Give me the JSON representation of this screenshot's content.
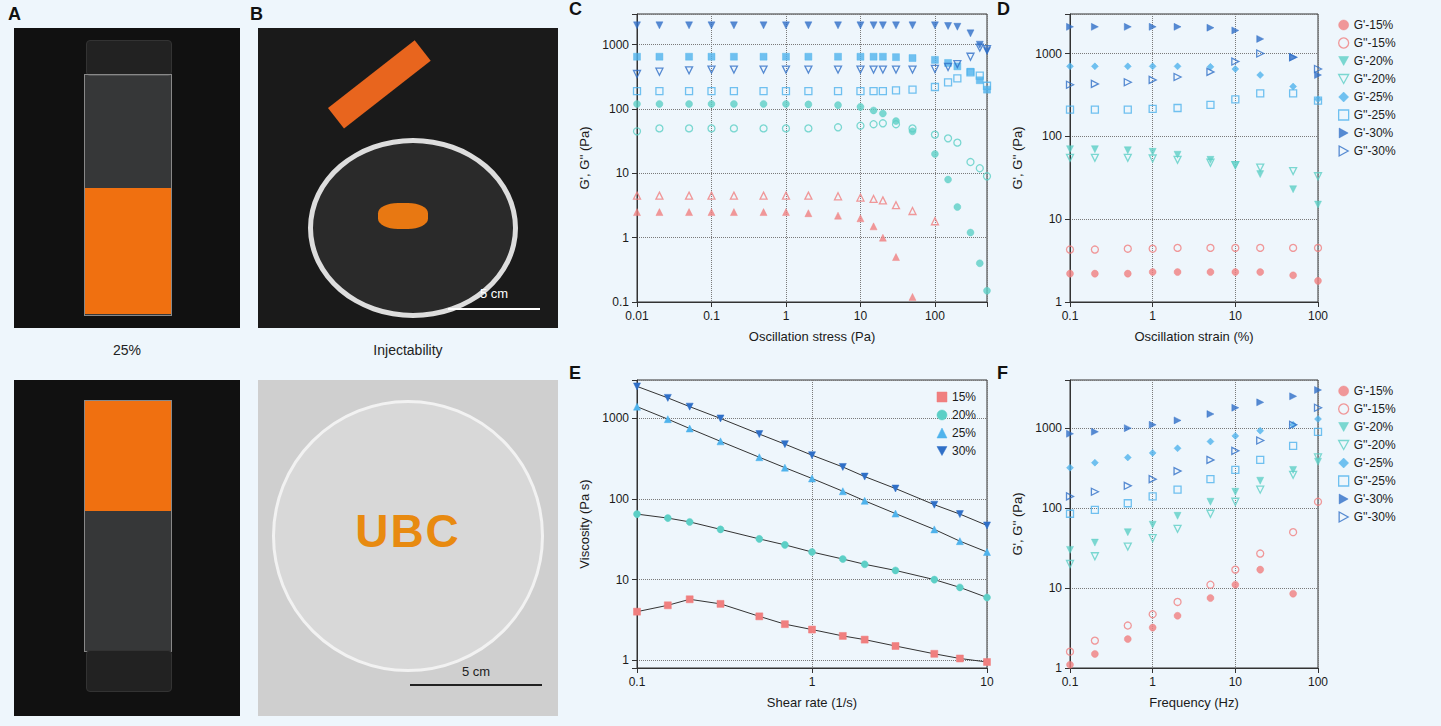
{
  "panels": [
    {
      "letter": "A",
      "caption": "25%"
    },
    {
      "letter": "B",
      "caption": "Injectability",
      "scale_bar": "5 cm",
      "inscription": "UBC"
    }
  ],
  "chart_data": [
    {
      "panel": "C",
      "type": "scatter",
      "log": true,
      "grid": true,
      "legend": "none",
      "x_label": "Oscillation stress (Pa)",
      "y_label": "G', G'' (Pa)",
      "xlim": [
        0.01,
        500
      ],
      "xticks": [
        0.01,
        0.1,
        1,
        10,
        100
      ],
      "ylim": [
        0.1,
        3000
      ],
      "yticks": [
        0.1,
        1,
        10,
        100,
        1000
      ],
      "x": [
        0.01,
        0.02,
        0.05,
        0.1,
        0.2,
        0.5,
        1,
        2,
        5,
        10,
        15,
        20,
        30,
        50,
        100,
        150,
        200,
        300,
        400,
        500
      ],
      "series": [
        {
          "name": "G'-15%",
          "color": "#f07f7f",
          "marker": "triangle",
          "values": [
            2.5,
            2.5,
            2.5,
            2.5,
            2.5,
            2.5,
            2.5,
            2.4,
            2.2,
            2.0,
            1.5,
            1.0,
            0.5,
            0.12,
            null,
            null,
            null,
            null,
            null,
            null
          ]
        },
        {
          "name": "G''-15%",
          "color": "#f07f7f",
          "marker": "triangle-open",
          "values": [
            4.5,
            4.5,
            4.5,
            4.5,
            4.5,
            4.5,
            4.5,
            4.5,
            4.4,
            4.2,
            4.0,
            3.8,
            3.2,
            2.6,
            1.8,
            null,
            null,
            null,
            null,
            null
          ]
        },
        {
          "name": "G'-20%",
          "color": "#5ccfc6",
          "marker": "circle",
          "values": [
            120,
            120,
            120,
            120,
            120,
            120,
            120,
            118,
            115,
            108,
            95,
            85,
            65,
            45,
            20,
            8,
            3,
            1.2,
            0.4,
            0.15
          ]
        },
        {
          "name": "G''-20%",
          "color": "#5ccfc6",
          "marker": "circle-open",
          "values": [
            45,
            50,
            50,
            50,
            50,
            50,
            50,
            50,
            52,
            55,
            58,
            60,
            58,
            50,
            40,
            35,
            30,
            15,
            12,
            9
          ]
        },
        {
          "name": "G'-25%",
          "color": "#4fb3ec",
          "marker": "square",
          "values": [
            650,
            650,
            650,
            650,
            650,
            650,
            650,
            650,
            650,
            650,
            650,
            650,
            640,
            620,
            580,
            520,
            460,
            380,
            280,
            200
          ]
        },
        {
          "name": "G''-25%",
          "color": "#4fb3ec",
          "marker": "square-open",
          "values": [
            190,
            190,
            190,
            190,
            190,
            190,
            190,
            190,
            190,
            190,
            190,
            190,
            195,
            200,
            220,
            260,
            300,
            370,
            330,
            230
          ]
        },
        {
          "name": "G'-30%",
          "color": "#2f6fc7",
          "marker": "triangle-down",
          "values": [
            2000,
            2000,
            2000,
            2000,
            2000,
            2000,
            2000,
            2000,
            2000,
            2000,
            2000,
            2000,
            2000,
            2000,
            2000,
            1950,
            1900,
            1500,
            1000,
            800
          ]
        },
        {
          "name": "G''-30%",
          "color": "#2f6fc7",
          "marker": "triangle-down-open",
          "values": [
            350,
            380,
            400,
            410,
            410,
            410,
            410,
            410,
            410,
            410,
            410,
            410,
            410,
            410,
            420,
            450,
            500,
            650,
            900,
            850
          ]
        }
      ]
    },
    {
      "panel": "D",
      "type": "scatter",
      "log": true,
      "grid": true,
      "legend": "right",
      "x_label": "Oscillation strain (%)",
      "y_label": "G', G'' (Pa)",
      "xlim": [
        0.1,
        100
      ],
      "xticks": [
        0.1,
        1,
        10,
        100
      ],
      "ylim": [
        1,
        3000
      ],
      "yticks": [
        1,
        10,
        100,
        1000
      ],
      "x": [
        0.1,
        0.2,
        0.5,
        1,
        2,
        5,
        10,
        20,
        50,
        100
      ],
      "series": [
        {
          "name": "G'-15%",
          "color": "#f07f7f",
          "marker": "circle",
          "values": [
            2.2,
            2.2,
            2.2,
            2.3,
            2.3,
            2.3,
            2.3,
            2.3,
            2.1,
            1.8
          ]
        },
        {
          "name": "G''-15%",
          "color": "#f07f7f",
          "marker": "circle-open",
          "values": [
            4.3,
            4.3,
            4.4,
            4.4,
            4.5,
            4.5,
            4.5,
            4.5,
            4.5,
            4.5
          ]
        },
        {
          "name": "G'-20%",
          "color": "#5ccfc6",
          "marker": "triangle-down",
          "values": [
            70,
            70,
            68,
            65,
            60,
            52,
            45,
            35,
            23,
            15
          ]
        },
        {
          "name": "G''-20%",
          "color": "#5ccfc6",
          "marker": "triangle-down-open",
          "values": [
            55,
            55,
            55,
            54,
            52,
            48,
            45,
            42,
            38,
            33
          ]
        },
        {
          "name": "G'-25%",
          "color": "#4fb3ec",
          "marker": "diamond",
          "values": [
            700,
            700,
            700,
            700,
            700,
            690,
            650,
            550,
            400,
            280
          ]
        },
        {
          "name": "G''-25%",
          "color": "#4fb3ec",
          "marker": "square-open",
          "values": [
            210,
            210,
            210,
            215,
            220,
            240,
            280,
            330,
            330,
            270
          ]
        },
        {
          "name": "G'-30%",
          "color": "#2f6fc7",
          "marker": "triangle-right",
          "values": [
            2100,
            2100,
            2100,
            2100,
            2100,
            2050,
            1900,
            1500,
            900,
            550
          ]
        },
        {
          "name": "G''-30%",
          "color": "#2f6fc7",
          "marker": "triangle-right-open",
          "values": [
            420,
            430,
            450,
            480,
            520,
            600,
            800,
            1000,
            900,
            650
          ]
        }
      ]
    },
    {
      "panel": "E",
      "type": "line",
      "log": true,
      "grid": true,
      "legend": "top-right",
      "line_style": "solid",
      "x_label": "Shear rate (1/s)",
      "y_label": "Viscosity (Pa s)",
      "xlim": [
        0.1,
        10
      ],
      "xticks": [
        0.1,
        1,
        10
      ],
      "ylim": [
        0.8,
        3000
      ],
      "yticks": [
        1,
        10,
        100,
        1000
      ],
      "x": [
        0.1,
        0.15,
        0.2,
        0.3,
        0.5,
        0.7,
        1,
        1.5,
        2,
        3,
        5,
        7,
        10
      ],
      "series": [
        {
          "name": "15%",
          "color": "#f07f7f",
          "marker": "square",
          "values": [
            4.0,
            4.8,
            5.7,
            5.0,
            3.5,
            2.8,
            2.4,
            2.0,
            1.8,
            1.5,
            1.2,
            1.05,
            0.95
          ]
        },
        {
          "name": "20%",
          "color": "#5ccfc6",
          "marker": "circle",
          "values": [
            65,
            58,
            52,
            42,
            32,
            27,
            22,
            18,
            15.5,
            13,
            10,
            8,
            6
          ]
        },
        {
          "name": "25%",
          "color": "#4fb3ec",
          "marker": "triangle",
          "values": [
            1400,
            980,
            750,
            520,
            330,
            245,
            180,
            125,
            95,
            66,
            42,
            30,
            22
          ]
        },
        {
          "name": "30%",
          "color": "#2f6fc7",
          "marker": "triangle-down",
          "values": [
            2500,
            1800,
            1400,
            1000,
            640,
            480,
            350,
            250,
            190,
            135,
            85,
            65,
            47
          ]
        }
      ]
    },
    {
      "panel": "F",
      "type": "scatter",
      "log": true,
      "grid": true,
      "legend": "right",
      "x_label": "Frequency (Hz)",
      "y_label": "G', G'' (Pa)",
      "xlim": [
        0.1,
        100
      ],
      "xticks": [
        0.1,
        1,
        10,
        100
      ],
      "ylim": [
        1,
        4000
      ],
      "yticks": [
        1,
        10,
        100,
        1000
      ],
      "x": [
        0.1,
        0.2,
        0.5,
        1,
        2,
        5,
        10,
        20,
        50,
        100
      ],
      "series": [
        {
          "name": "G'-15%",
          "color": "#f07f7f",
          "marker": "circle",
          "values": [
            1.1,
            1.5,
            2.3,
            3.2,
            4.5,
            7.5,
            11,
            17,
            8.5,
            null
          ]
        },
        {
          "name": "G''-15%",
          "color": "#f07f7f",
          "marker": "circle-open",
          "values": [
            1.6,
            2.2,
            3.4,
            4.7,
            6.7,
            11,
            17,
            27,
            50,
            120
          ]
        },
        {
          "name": "G'-20%",
          "color": "#5ccfc6",
          "marker": "triangle-down",
          "values": [
            30,
            37,
            50,
            62,
            80,
            120,
            160,
            220,
            300,
            380
          ]
        },
        {
          "name": "G''-20%",
          "color": "#5ccfc6",
          "marker": "triangle-down-open",
          "values": [
            20,
            25,
            33,
            42,
            55,
            85,
            120,
            170,
            260,
            430
          ]
        },
        {
          "name": "G'-25%",
          "color": "#4fb3ec",
          "marker": "diamond",
          "values": [
            320,
            370,
            430,
            490,
            560,
            680,
            800,
            930,
            1100,
            1300
          ]
        },
        {
          "name": "G''-25%",
          "color": "#4fb3ec",
          "marker": "square-open",
          "values": [
            85,
            95,
            115,
            140,
            170,
            230,
            300,
            400,
            600,
            900
          ]
        },
        {
          "name": "G'-30%",
          "color": "#2f6fc7",
          "marker": "triangle-right",
          "values": [
            850,
            900,
            1000,
            1100,
            1250,
            1500,
            1800,
            2100,
            2500,
            3000
          ]
        },
        {
          "name": "G''-30%",
          "color": "#2f6fc7",
          "marker": "triangle-right-open",
          "values": [
            140,
            160,
            190,
            230,
            290,
            400,
            520,
            700,
            1100,
            1800
          ]
        }
      ]
    }
  ]
}
